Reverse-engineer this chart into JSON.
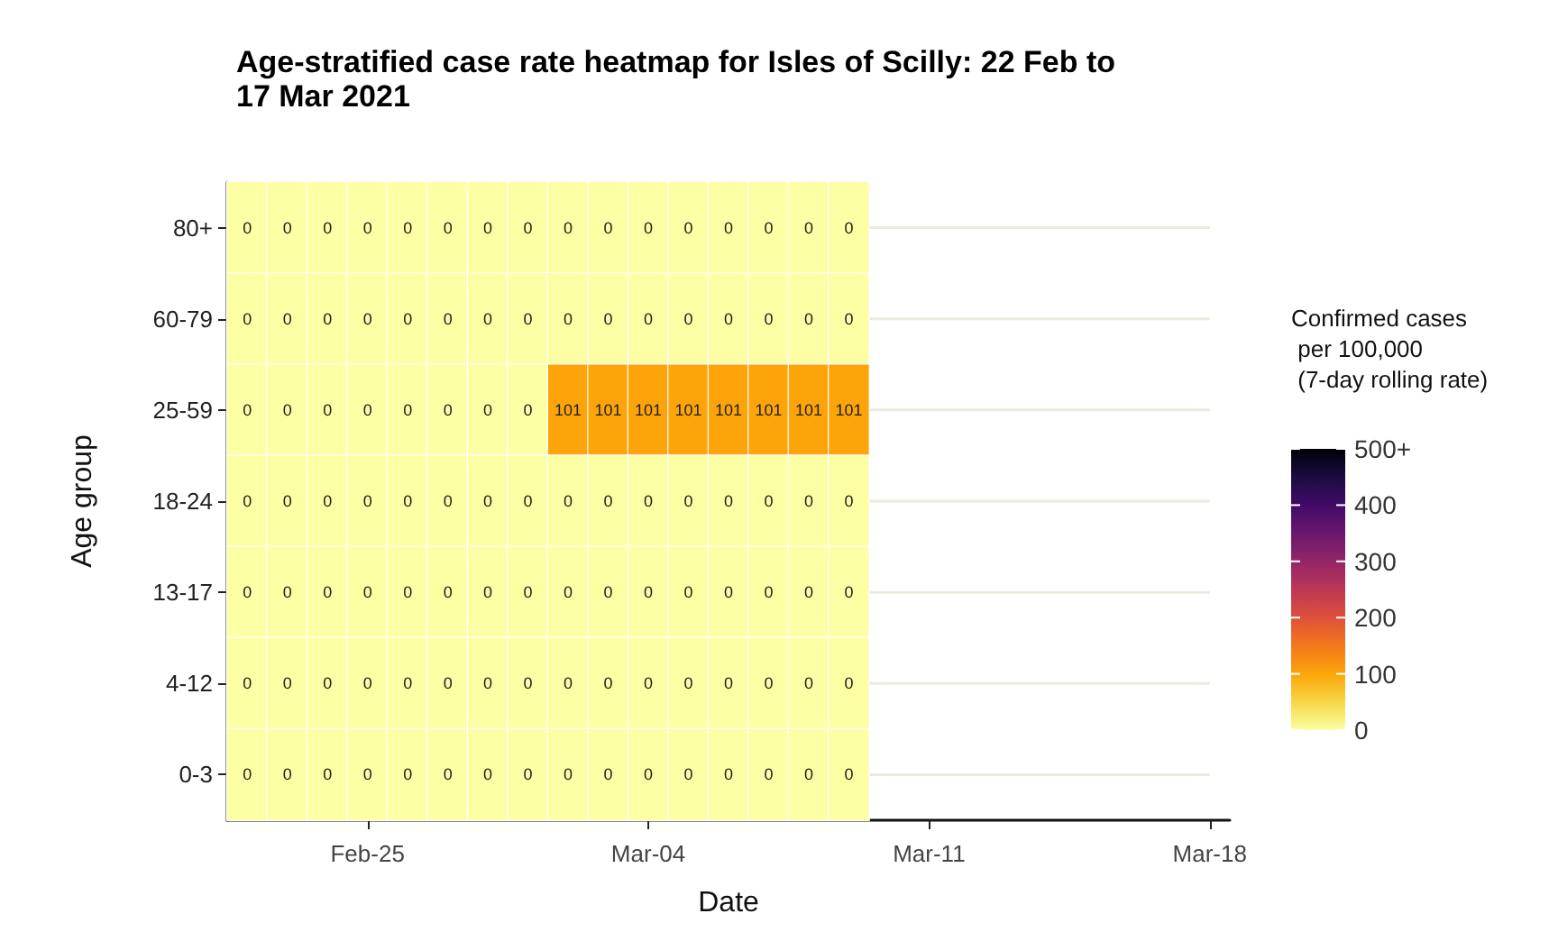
{
  "chart_data": {
    "type": "heatmap",
    "title": "Age-stratified case rate heatmap for Isles of Scilly: 22 Feb to\n17 Mar 2021",
    "xlabel": "Date",
    "ylabel": "Age group",
    "clabel": "Confirmed cases\n per 100,000\n (7-day rolling rate)",
    "categories": [
      null,
      null,
      null,
      "Feb-25",
      null,
      null,
      null,
      null,
      null,
      null,
      "Mar-04",
      null,
      null,
      null,
      null,
      null,
      null,
      "Mar-11",
      null,
      null,
      null,
      null,
      null,
      null,
      "Mar-18"
    ],
    "y_categories": [
      "80+",
      "60-79",
      "25-59",
      "18-24",
      "13-17",
      "4-12",
      "0-3"
    ],
    "cells": [
      [
        0,
        0,
        0,
        0,
        0,
        0,
        0,
        0,
        0,
        0,
        0,
        0,
        0,
        0,
        0,
        0,
        null,
        null,
        null,
        null,
        null,
        null,
        null,
        null,
        null
      ],
      [
        0,
        0,
        0,
        0,
        0,
        0,
        0,
        0,
        0,
        0,
        0,
        0,
        0,
        0,
        0,
        0,
        null,
        null,
        null,
        null,
        null,
        null,
        null,
        null,
        null
      ],
      [
        0,
        0,
        0,
        0,
        0,
        0,
        0,
        0,
        101,
        101,
        101,
        101,
        101,
        101,
        101,
        101,
        null,
        null,
        null,
        null,
        null,
        null,
        null,
        null,
        null
      ],
      [
        0,
        0,
        0,
        0,
        0,
        0,
        0,
        0,
        0,
        0,
        0,
        0,
        0,
        0,
        0,
        0,
        null,
        null,
        null,
        null,
        null,
        null,
        null,
        null,
        null
      ],
      [
        0,
        0,
        0,
        0,
        0,
        0,
        0,
        0,
        0,
        0,
        0,
        0,
        0,
        0,
        0,
        0,
        null,
        null,
        null,
        null,
        null,
        null,
        null,
        null,
        null
      ],
      [
        0,
        0,
        0,
        0,
        0,
        0,
        0,
        0,
        0,
        0,
        0,
        0,
        0,
        0,
        0,
        0,
        null,
        null,
        null,
        null,
        null,
        null,
        null,
        null,
        null
      ],
      [
        0,
        0,
        0,
        0,
        0,
        0,
        0,
        0,
        0,
        0,
        0,
        0,
        0,
        0,
        0,
        0,
        null,
        null,
        null,
        null,
        null,
        null,
        null,
        null,
        null
      ]
    ],
    "clim": [
      0,
      500
    ],
    "cticks": [
      0,
      100,
      200,
      300,
      400,
      {
        "value": 500,
        "label": "500+"
      }
    ],
    "data_labels": true,
    "grid": "y"
  }
}
